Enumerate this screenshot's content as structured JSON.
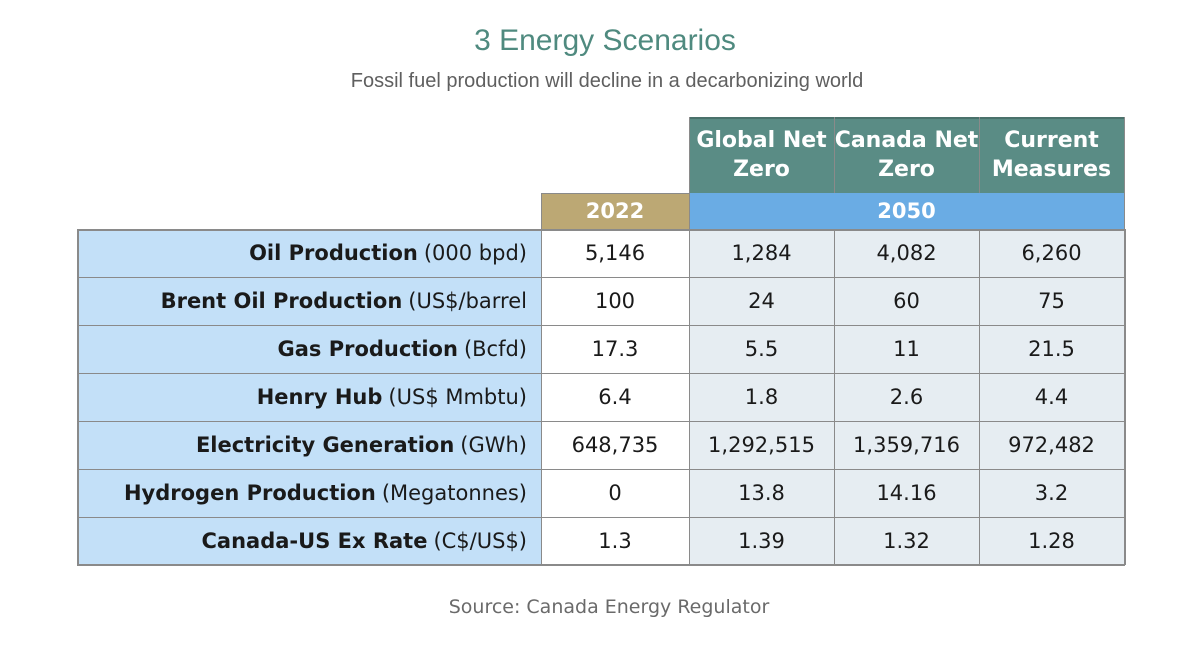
{
  "title": "3 Energy Scenarios",
  "subtitle": "Fossil fuel production will decline in a decarbonizing world",
  "source": "Source: Canada Energy Regulator",
  "colors": {
    "title": "#4f8a7f",
    "scenario_header_bg": "#5a8c85",
    "year_2022_bg": "#bca874",
    "year_2050_bg": "#6aace4",
    "row_label_bg": "#c3e0f8",
    "value_2050_bg": "#e6edf2"
  },
  "chart_data": {
    "type": "table",
    "year_headers": [
      "2022",
      "2050"
    ],
    "scenarios": [
      "Global Net Zero",
      "Canada Net Zero",
      "Current Measures"
    ],
    "rows": [
      {
        "label": "Oil Production",
        "unit": "(000 bpd)",
        "values": [
          "5,146",
          "1,284",
          "4,082",
          "6,260"
        ]
      },
      {
        "label": "Brent Oil Production",
        "unit": "(US$/barrel",
        "values": [
          "100",
          "24",
          "60",
          "75"
        ]
      },
      {
        "label": "Gas Production",
        "unit": "(Bcfd)",
        "values": [
          "17.3",
          "5.5",
          "11",
          "21.5"
        ]
      },
      {
        "label": "Henry Hub",
        "unit": "(US$ Mmbtu)",
        "values": [
          "6.4",
          "1.8",
          "2.6",
          "4.4"
        ]
      },
      {
        "label": "Electricity Generation",
        "unit": "(GWh)",
        "values": [
          "648,735",
          "1,292,515",
          "1,359,716",
          "972,482"
        ]
      },
      {
        "label": "Hydrogen Production",
        "unit": "(Megatonnes)",
        "values": [
          "0",
          "13.8",
          "14.16",
          "3.2"
        ]
      },
      {
        "label": "Canada-US Ex Rate",
        "unit": "(C$/US$)",
        "values": [
          "1.3",
          "1.39",
          "1.32",
          "1.28"
        ]
      }
    ]
  }
}
